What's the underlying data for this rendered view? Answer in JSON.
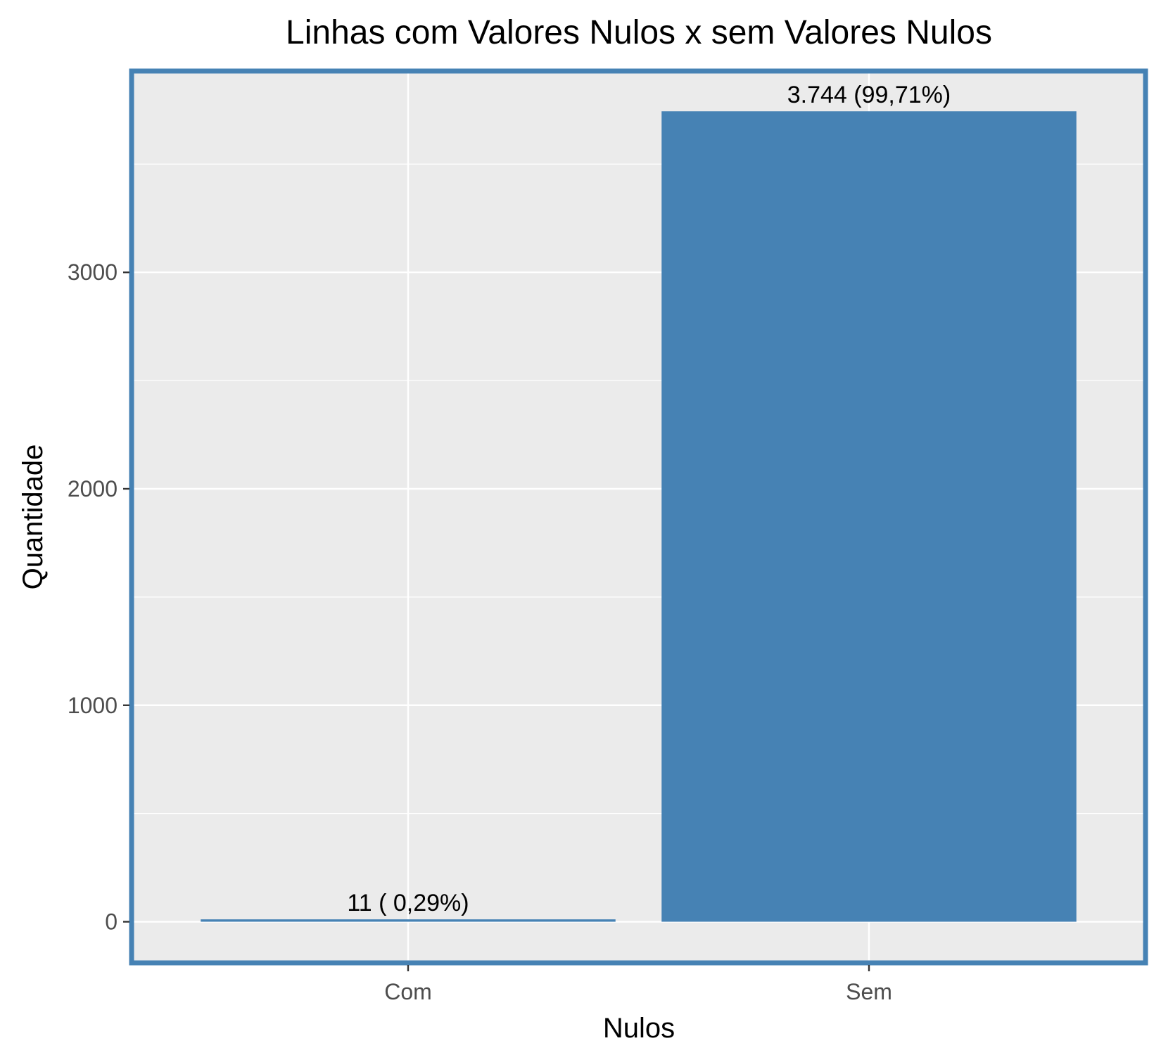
{
  "chart_data": {
    "type": "bar",
    "title": "Linhas com Valores Nulos x sem Valores Nulos",
    "xlabel": "Nulos",
    "ylabel": "Quantidade",
    "categories": [
      "Com",
      "Sem"
    ],
    "values": [
      11,
      3744
    ],
    "data_labels": [
      "11 ( 0,29%)",
      "3.744 (99,71%)"
    ],
    "ylim": [
      -190,
      3930
    ],
    "yticks": [
      0,
      1000,
      2000,
      3000
    ],
    "ytick_labels": [
      "0",
      "1000",
      "2000",
      "3000"
    ],
    "grid": true,
    "legend": "none",
    "colors": {
      "bar": "#4682b4",
      "panel_background": "#ebebeb",
      "panel_border": "#4682b4",
      "grid": "#ffffff"
    }
  }
}
